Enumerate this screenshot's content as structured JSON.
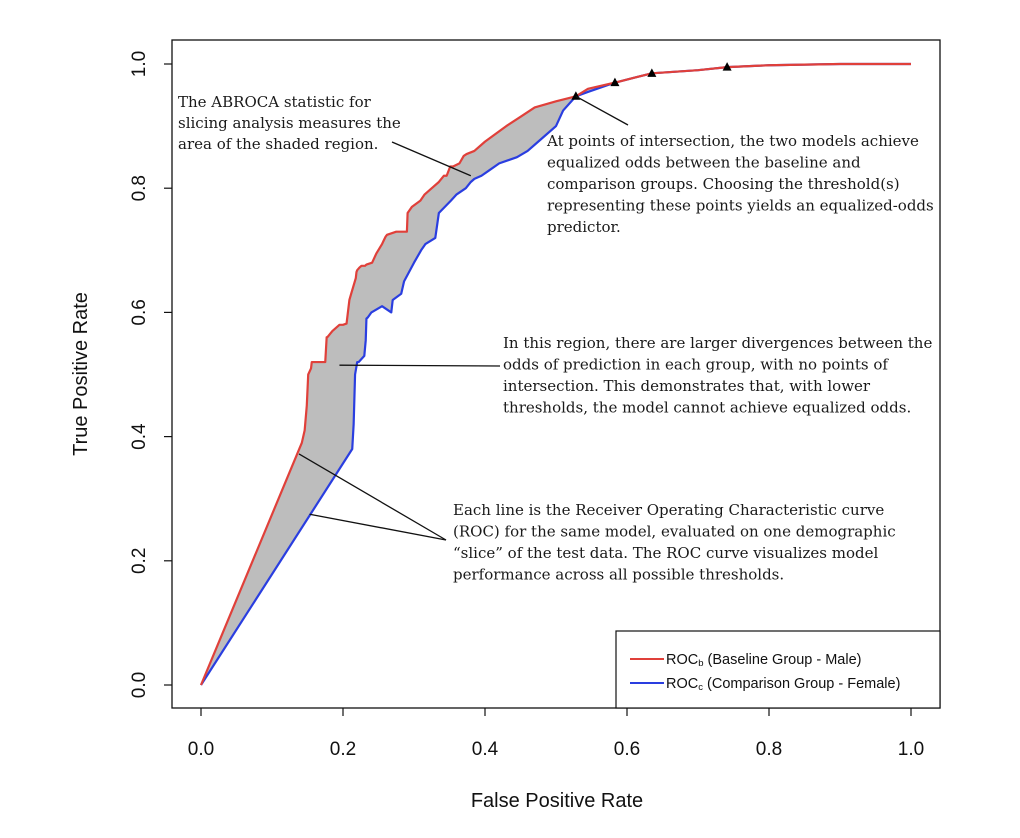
{
  "chart_data": {
    "type": "line",
    "title": "",
    "xlabel": "False Positive Rate",
    "ylabel": "True Positive Rate",
    "xlim": [
      0,
      1
    ],
    "ylim": [
      0,
      1
    ],
    "x_ticks": [
      "0.0",
      "0.2",
      "0.4",
      "0.6",
      "0.8",
      "1.0"
    ],
    "y_ticks": [
      "0.0",
      "0.2",
      "0.4",
      "0.6",
      "0.8",
      "1.0"
    ],
    "grid": false,
    "legend_position": "bottom-right",
    "series": [
      {
        "name": "ROCb (Baseline Group - Male)",
        "name_main": "ROC",
        "name_sub": "b",
        "name_rest": " (Baseline Group - Male)",
        "color": "#e0403a",
        "x": [
          0.0,
          0.142,
          0.146,
          0.149,
          0.151,
          0.155,
          0.156,
          0.16,
          0.165,
          0.171,
          0.175,
          0.177,
          0.178,
          0.185,
          0.19,
          0.195,
          0.2,
          0.205,
          0.209,
          0.212,
          0.218,
          0.219,
          0.22,
          0.223,
          0.226,
          0.231,
          0.233,
          0.241,
          0.247,
          0.255,
          0.257,
          0.26,
          0.262,
          0.275,
          0.29,
          0.291,
          0.297,
          0.309,
          0.315,
          0.325,
          0.335,
          0.342,
          0.346,
          0.351,
          0.355,
          0.364,
          0.37,
          0.374,
          0.385,
          0.4,
          0.43,
          0.45,
          0.47,
          0.5,
          0.528,
          0.545,
          0.583,
          0.6,
          0.635,
          0.7,
          0.741,
          0.8,
          0.9,
          1.0
        ],
        "y": [
          0.0,
          0.39,
          0.41,
          0.45,
          0.5,
          0.51,
          0.52,
          0.52,
          0.52,
          0.52,
          0.52,
          0.56,
          0.56,
          0.57,
          0.575,
          0.58,
          0.58,
          0.582,
          0.62,
          0.632,
          0.655,
          0.665,
          0.668,
          0.672,
          0.675,
          0.675,
          0.677,
          0.68,
          0.695,
          0.71,
          0.715,
          0.722,
          0.725,
          0.73,
          0.73,
          0.76,
          0.77,
          0.78,
          0.79,
          0.8,
          0.81,
          0.82,
          0.82,
          0.835,
          0.835,
          0.84,
          0.852,
          0.855,
          0.86,
          0.875,
          0.9,
          0.915,
          0.93,
          0.94,
          0.948,
          0.96,
          0.97,
          0.975,
          0.985,
          0.99,
          0.995,
          0.998,
          1.0,
          1.0
        ]
      },
      {
        "name": "ROCc (Comparison Group - Female)",
        "name_main": "ROC",
        "name_sub": "c",
        "name_rest": " (Comparison Group - Female)",
        "color": "#2a3ee0",
        "x": [
          0.0,
          0.213,
          0.215,
          0.217,
          0.22,
          0.222,
          0.226,
          0.23,
          0.232,
          0.233,
          0.235,
          0.24,
          0.255,
          0.268,
          0.27,
          0.282,
          0.286,
          0.3,
          0.31,
          0.316,
          0.33,
          0.335,
          0.352,
          0.36,
          0.373,
          0.38,
          0.385,
          0.395,
          0.405,
          0.42,
          0.445,
          0.46,
          0.475,
          0.5,
          0.51,
          0.528,
          0.545,
          0.583,
          0.6,
          0.635,
          0.7,
          0.741,
          0.8,
          0.9,
          1.0
        ],
        "y": [
          0.0,
          0.38,
          0.42,
          0.5,
          0.52,
          0.52,
          0.525,
          0.53,
          0.555,
          0.59,
          0.592,
          0.6,
          0.61,
          0.6,
          0.62,
          0.63,
          0.65,
          0.68,
          0.7,
          0.71,
          0.72,
          0.76,
          0.78,
          0.79,
          0.8,
          0.81,
          0.815,
          0.82,
          0.828,
          0.84,
          0.85,
          0.86,
          0.875,
          0.9,
          0.925,
          0.948,
          0.955,
          0.97,
          0.975,
          0.985,
          0.99,
          0.995,
          0.998,
          1.0,
          1.0
        ]
      }
    ],
    "intersection_points": [
      {
        "x": 0.528,
        "y": 0.948
      },
      {
        "x": 0.583,
        "y": 0.97
      },
      {
        "x": 0.635,
        "y": 0.985
      },
      {
        "x": 0.741,
        "y": 0.995
      }
    ],
    "shaded_region": {
      "color": "#bdbdbd"
    },
    "annotations": [
      {
        "id": "abroca",
        "lines": [
          "The ABROCA statistic for",
          "slicing analysis measures the",
          "area of the shaded region."
        ],
        "pointers": [
          {
            "x": 0.38,
            "y": 0.82
          }
        ]
      },
      {
        "id": "intersection",
        "lines": [
          "At points of intersection, the two models achieve",
          "equalized odds between the baseline and",
          "comparison groups. Choosing the threshold(s)",
          "representing these points yields an equalized-odds",
          "predictor."
        ],
        "pointers": [
          {
            "x": 0.528,
            "y": 0.948
          }
        ]
      },
      {
        "id": "divergence",
        "lines": [
          "In this region, there are larger divergences between the",
          "odds of prediction in each group, with no points of",
          "intersection. This demonstrates that, with lower",
          "thresholds, the model cannot achieve equalized odds."
        ],
        "pointers": [
          {
            "x": 0.195,
            "y": 0.515
          }
        ]
      },
      {
        "id": "roc-explainer",
        "lines": [
          "Each line is the Receiver Operating Characteristic curve",
          "(ROC) for the same model, evaluated on one demographic",
          "“slice” of the test data. The ROC curve visualizes model",
          "performance across all possible thresholds."
        ],
        "pointers": [
          {
            "x": 0.138,
            "y": 0.372
          },
          {
            "x": 0.153,
            "y": 0.275
          }
        ]
      }
    ]
  }
}
